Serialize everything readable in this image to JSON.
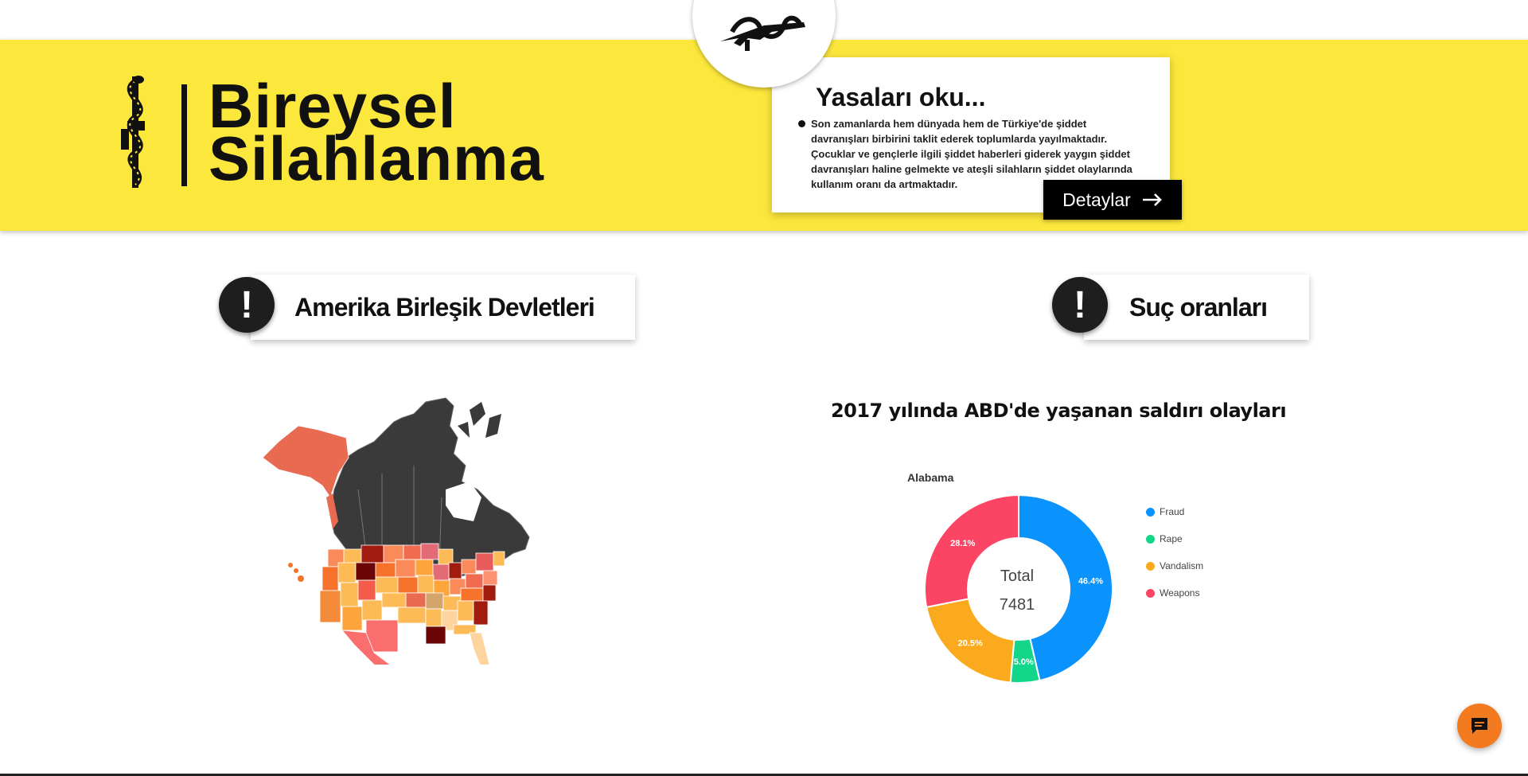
{
  "header": {
    "brand_line1": "Bireysel",
    "brand_line2": "Silahlanma",
    "accent_color": "#fce73c"
  },
  "laws_card": {
    "title": "Yasaları oku...",
    "text": "Son zamanlarda hem dünyada hem de Türkiye'de şiddet davranışları birbirini taklit ederek toplumlarda yayılmaktadır. Çocuklar ve gençlerle ilgili şiddet haberleri giderek yaygın şiddet davranışları haline gelmekte ve ateşli silahların şiddet olaylarında kullanım oranı da artmaktadır.",
    "button_label": "Detaylar",
    "button_icon": "arrow-right-icon"
  },
  "sections": {
    "left_title": "Amerika Birleşik Devletleri",
    "right_title": "Suç oranları",
    "icon": "exclamation-icon"
  },
  "chart": {
    "title": "2017 yılında ABD'de yaşanan saldırı olayları",
    "state": "Alabama",
    "center_label": "Total",
    "center_value": "7481"
  },
  "chart_data": {
    "type": "pie",
    "title": "2017 yılında ABD'de yaşanan saldırı olayları",
    "subtitle": "Alabama",
    "categories": [
      "Fraud",
      "Rape",
      "Vandalism",
      "Weapons"
    ],
    "values": [
      46.4,
      5.0,
      20.5,
      28.1
    ],
    "labels": [
      "46.4%",
      "5.0%",
      "20.5%",
      "28.1%"
    ],
    "colors": [
      "#0a93fc",
      "#13d68a",
      "#fbaa1e",
      "#fc4564"
    ],
    "total": 7481,
    "legend": "right"
  },
  "chat": {
    "icon": "chat-bubble-icon",
    "color": "#f47a1f"
  }
}
